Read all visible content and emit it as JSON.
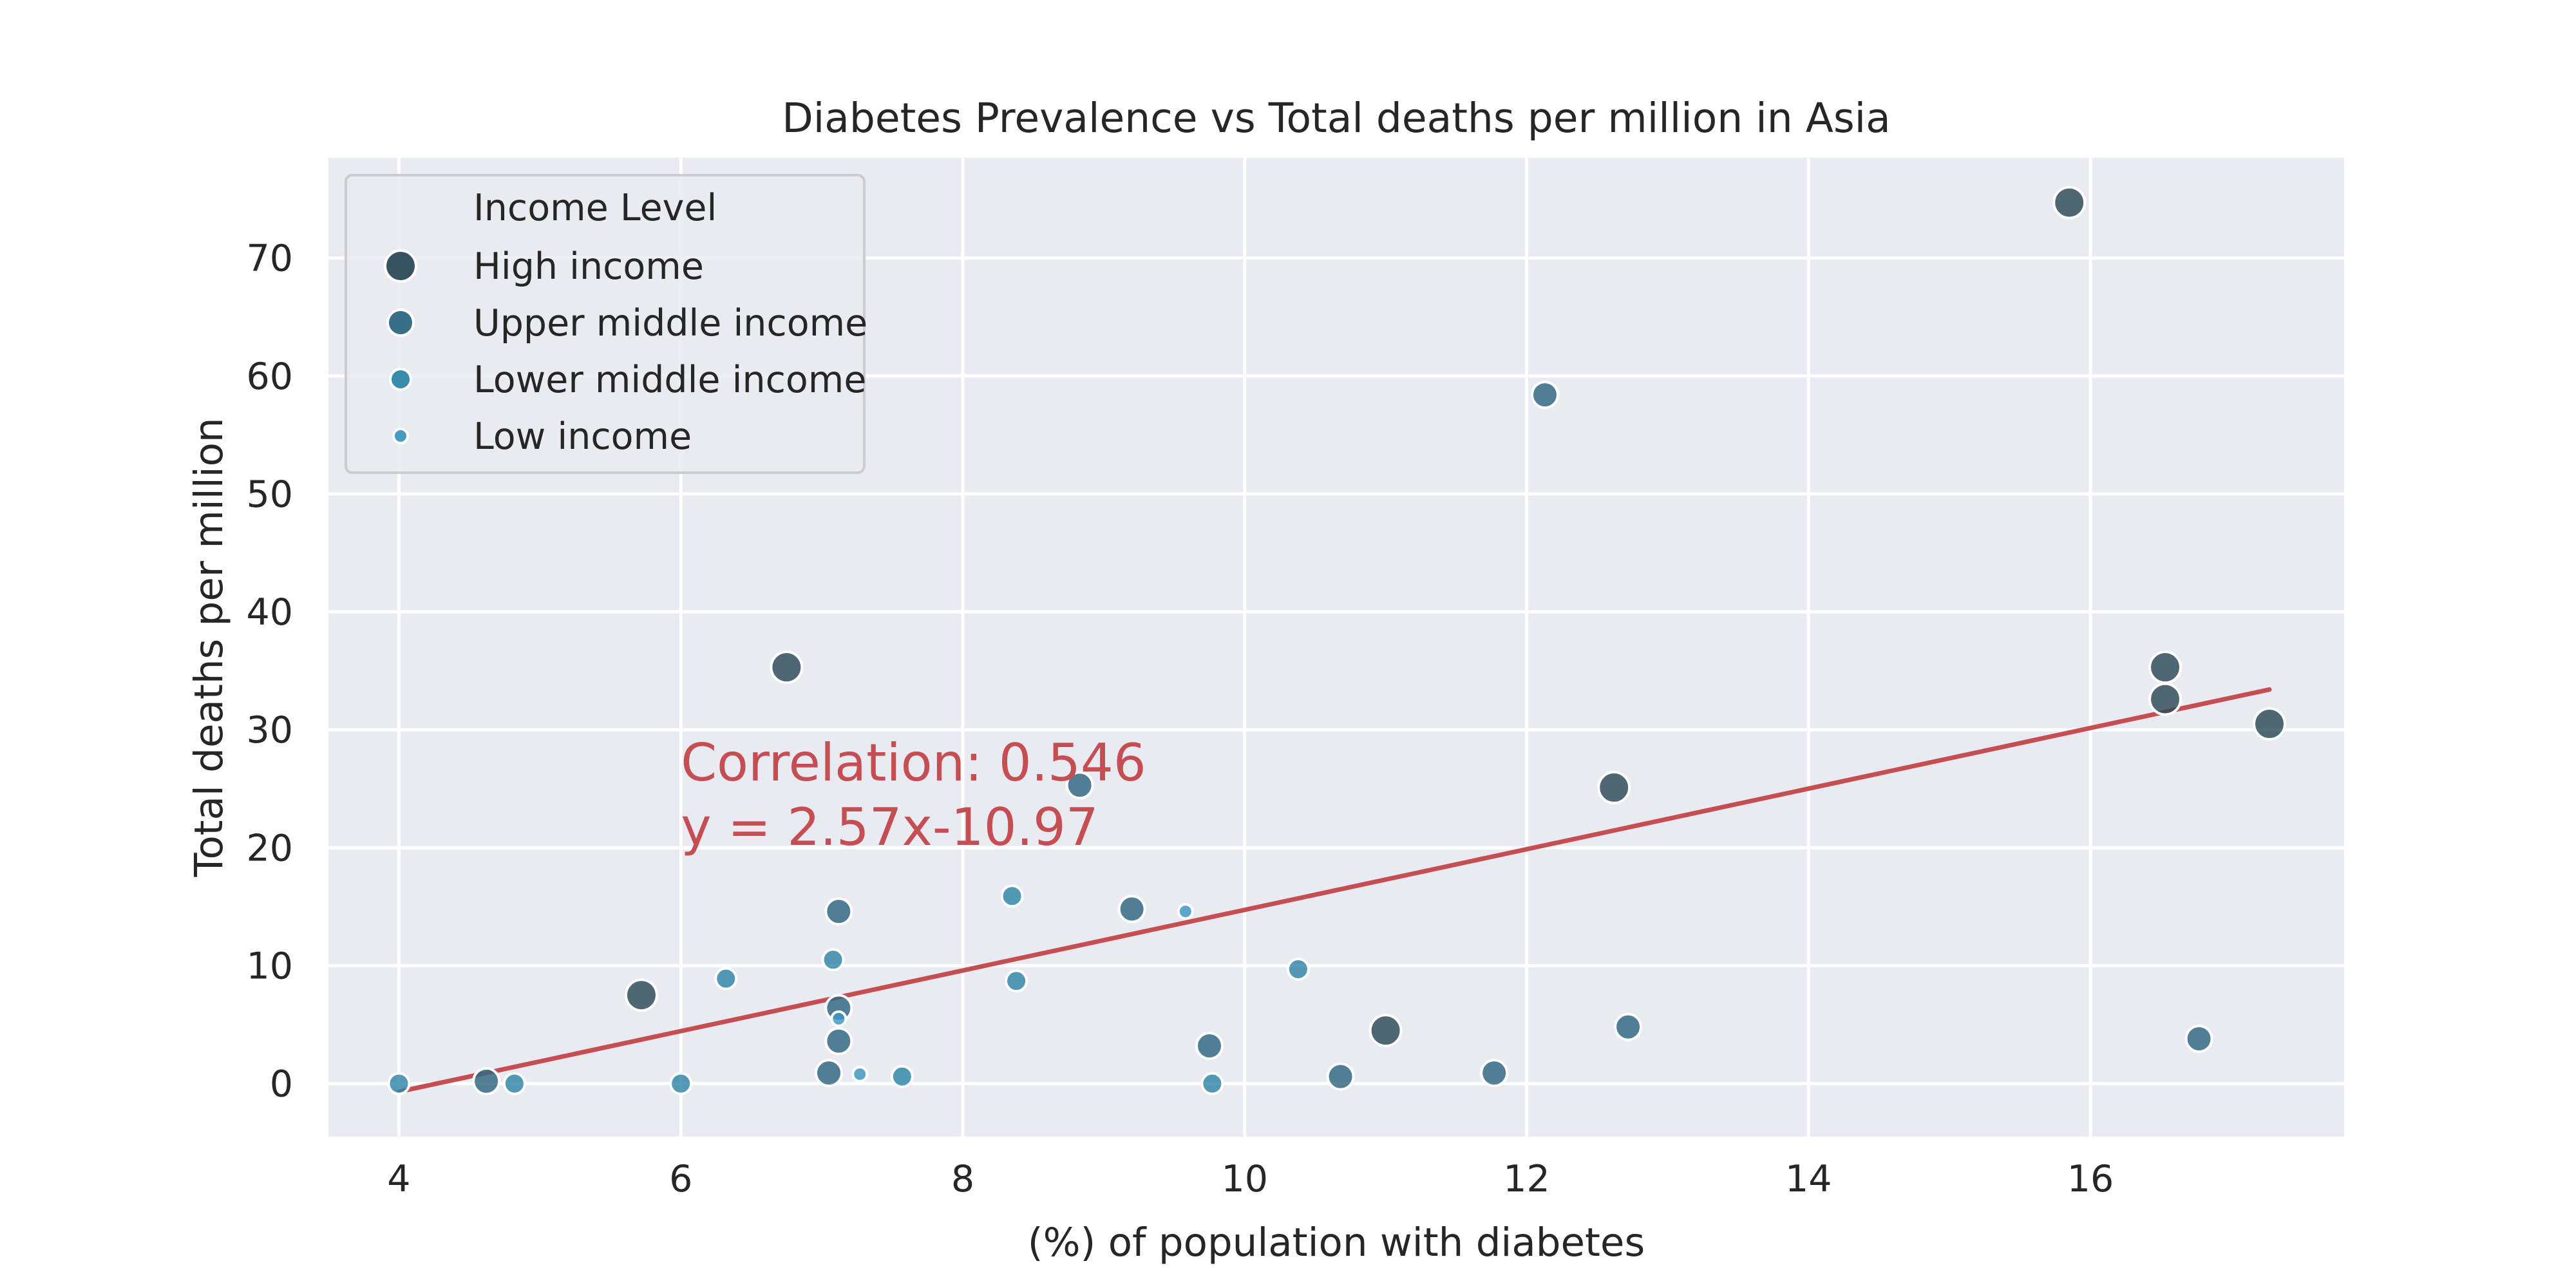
{
  "chart_data": {
    "type": "scatter",
    "title": "Diabetes Prevalence vs Total deaths per million in Asia",
    "xlabel": "(%) of population with diabetes",
    "ylabel": "Total deaths per million",
    "xlim": [
      3.5,
      17.8
    ],
    "ylim": [
      -4.5,
      78.5
    ],
    "xticks": [
      4,
      6,
      8,
      10,
      12,
      14,
      16
    ],
    "yticks": [
      0,
      10,
      20,
      30,
      40,
      50,
      60,
      70
    ],
    "grid": true,
    "legend": {
      "title": "Income Level",
      "placement": "top-left",
      "entries": [
        {
          "label": "High income",
          "color": "#2d4a57",
          "size_rank": 4
        },
        {
          "label": "Upper middle income",
          "color": "#2e6880",
          "size_rank": 3
        },
        {
          "label": "Lower middle income",
          "color": "#2f86a6",
          "size_rank": 2
        },
        {
          "label": "Low income",
          "color": "#3d97c0",
          "size_rank": 1
        }
      ]
    },
    "points": [
      {
        "x": 15.85,
        "y": 74.7,
        "group": "High income"
      },
      {
        "x": 6.75,
        "y": 35.3,
        "group": "High income"
      },
      {
        "x": 5.72,
        "y": 7.5,
        "group": "High income"
      },
      {
        "x": 12.62,
        "y": 25.1,
        "group": "High income"
      },
      {
        "x": 11.0,
        "y": 4.5,
        "group": "High income"
      },
      {
        "x": 16.53,
        "y": 35.3,
        "group": "High income"
      },
      {
        "x": 16.53,
        "y": 32.6,
        "group": "High income"
      },
      {
        "x": 17.27,
        "y": 30.5,
        "group": "High income"
      },
      {
        "x": 12.13,
        "y": 58.4,
        "group": "Upper middle income"
      },
      {
        "x": 8.83,
        "y": 25.3,
        "group": "Upper middle income"
      },
      {
        "x": 7.12,
        "y": 14.6,
        "group": "Upper middle income"
      },
      {
        "x": 9.2,
        "y": 14.8,
        "group": "Upper middle income"
      },
      {
        "x": 7.12,
        "y": 6.4,
        "group": "Upper middle income"
      },
      {
        "x": 7.12,
        "y": 3.6,
        "group": "Upper middle income"
      },
      {
        "x": 7.05,
        "y": 0.9,
        "group": "Upper middle income"
      },
      {
        "x": 9.75,
        "y": 3.2,
        "group": "Upper middle income"
      },
      {
        "x": 10.68,
        "y": 0.6,
        "group": "Upper middle income"
      },
      {
        "x": 11.77,
        "y": 0.9,
        "group": "Upper middle income"
      },
      {
        "x": 12.72,
        "y": 4.8,
        "group": "Upper middle income"
      },
      {
        "x": 16.77,
        "y": 3.8,
        "group": "Upper middle income"
      },
      {
        "x": 4.62,
        "y": 0.2,
        "group": "Upper middle income"
      },
      {
        "x": 8.35,
        "y": 15.9,
        "group": "Lower middle income"
      },
      {
        "x": 7.08,
        "y": 10.5,
        "group": "Lower middle income"
      },
      {
        "x": 6.32,
        "y": 8.9,
        "group": "Lower middle income"
      },
      {
        "x": 8.38,
        "y": 8.7,
        "group": "Lower middle income"
      },
      {
        "x": 10.38,
        "y": 9.7,
        "group": "Lower middle income"
      },
      {
        "x": 4.0,
        "y": 0.0,
        "group": "Lower middle income"
      },
      {
        "x": 4.82,
        "y": 0.0,
        "group": "Lower middle income"
      },
      {
        "x": 6.0,
        "y": 0.0,
        "group": "Lower middle income"
      },
      {
        "x": 7.57,
        "y": 0.6,
        "group": "Lower middle income"
      },
      {
        "x": 9.77,
        "y": 0.0,
        "group": "Lower middle income"
      },
      {
        "x": 9.58,
        "y": 14.6,
        "group": "Low income"
      },
      {
        "x": 7.12,
        "y": 5.5,
        "group": "Low income"
      },
      {
        "x": 7.27,
        "y": 0.8,
        "group": "Low income"
      }
    ],
    "fit_line": {
      "slope": 2.57,
      "intercept": -10.97,
      "x_start": 4.0,
      "x_end": 17.27,
      "color": "#c44e52"
    },
    "annotation": {
      "lines": [
        "Correlation: 0.546",
        "y = 2.57x-10.97"
      ],
      "x": 6.0,
      "y": 20.5,
      "color": "#c44e52"
    }
  }
}
